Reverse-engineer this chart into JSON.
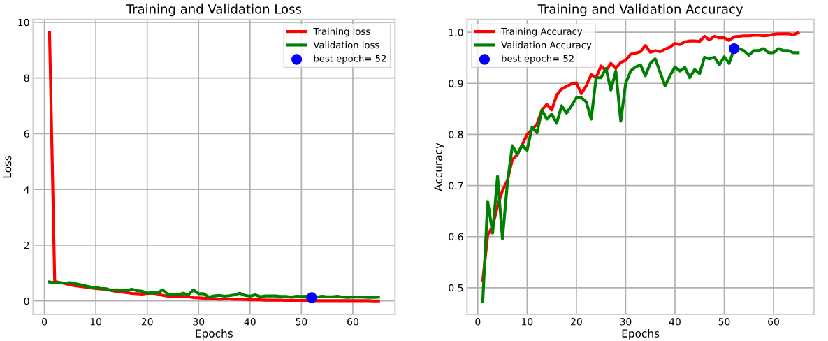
{
  "chart_data": [
    {
      "type": "line",
      "title": "Training and Validation Loss",
      "xlabel": "Epochs",
      "ylabel": "Loss",
      "x": [
        1,
        2,
        3,
        4,
        5,
        6,
        7,
        8,
        9,
        10,
        11,
        12,
        13,
        14,
        15,
        16,
        17,
        18,
        19,
        20,
        21,
        22,
        23,
        24,
        25,
        26,
        27,
        28,
        29,
        30,
        31,
        32,
        33,
        34,
        35,
        36,
        37,
        38,
        39,
        40,
        41,
        42,
        43,
        44,
        45,
        46,
        47,
        48,
        49,
        50,
        51,
        52,
        53,
        54,
        55,
        56,
        57,
        58,
        59,
        60,
        61,
        62,
        63,
        64,
        65
      ],
      "series": [
        {
          "name": "Training loss",
          "color": "#ff0000",
          "values": [
            9.62,
            0.7,
            0.66,
            0.63,
            0.58,
            0.55,
            0.52,
            0.5,
            0.47,
            0.45,
            0.43,
            0.42,
            0.38,
            0.34,
            0.32,
            0.3,
            0.27,
            0.26,
            0.25,
            0.27,
            0.28,
            0.25,
            0.2,
            0.17,
            0.18,
            0.16,
            0.17,
            0.15,
            0.12,
            0.11,
            0.1,
            0.08,
            0.08,
            0.06,
            0.07,
            0.07,
            0.06,
            0.06,
            0.05,
            0.04,
            0.04,
            0.04,
            0.03,
            0.03,
            0.03,
            0.03,
            0.02,
            0.03,
            0.02,
            0.02,
            0.03,
            0.01,
            0.01,
            0.01,
            0.01,
            0.01,
            0.01,
            0.01,
            0.01,
            0.01,
            0.01,
            0.01,
            0.01,
            0.0,
            0.0
          ]
        },
        {
          "name": "Validation loss",
          "color": "#008000",
          "values": [
            0.68,
            0.66,
            0.66,
            0.64,
            0.66,
            0.62,
            0.58,
            0.54,
            0.5,
            0.48,
            0.45,
            0.44,
            0.38,
            0.4,
            0.38,
            0.38,
            0.42,
            0.37,
            0.35,
            0.28,
            0.3,
            0.29,
            0.4,
            0.24,
            0.24,
            0.22,
            0.28,
            0.22,
            0.4,
            0.26,
            0.26,
            0.14,
            0.18,
            0.2,
            0.17,
            0.19,
            0.22,
            0.28,
            0.2,
            0.17,
            0.22,
            0.15,
            0.18,
            0.18,
            0.18,
            0.16,
            0.16,
            0.14,
            0.17,
            0.16,
            0.17,
            0.12,
            0.14,
            0.17,
            0.15,
            0.15,
            0.17,
            0.14,
            0.13,
            0.14,
            0.14,
            0.14,
            0.13,
            0.13,
            0.14
          ]
        },
        {
          "name": "best epoch= 52",
          "type": "scatter",
          "color": "#0000ff",
          "x": [
            52
          ],
          "values": [
            0.12
          ]
        }
      ],
      "xlim": [
        -2.2,
        68.2
      ],
      "ylim": [
        -0.48,
        10.1
      ],
      "xticks": [
        0,
        10,
        20,
        30,
        40,
        50,
        60
      ],
      "yticks": [
        0,
        2,
        4,
        6,
        8,
        10
      ],
      "grid": true,
      "legend": "top right"
    },
    {
      "type": "line",
      "title": "Training and Validation Accuracy",
      "xlabel": "Epochs",
      "ylabel": "Accuracy",
      "x": [
        1,
        2,
        3,
        4,
        5,
        6,
        7,
        8,
        9,
        10,
        11,
        12,
        13,
        14,
        15,
        16,
        17,
        18,
        19,
        20,
        21,
        22,
        23,
        24,
        25,
        26,
        27,
        28,
        29,
        30,
        31,
        32,
        33,
        34,
        35,
        36,
        37,
        38,
        39,
        40,
        41,
        42,
        43,
        44,
        45,
        46,
        47,
        48,
        49,
        50,
        51,
        52,
        53,
        54,
        55,
        56,
        57,
        58,
        59,
        60,
        61,
        62,
        63,
        64,
        65
      ],
      "series": [
        {
          "name": "Training Accuracy",
          "color": "#ff0000",
          "values": [
            0.514,
            0.603,
            0.62,
            0.66,
            0.69,
            0.71,
            0.751,
            0.76,
            0.78,
            0.8,
            0.81,
            0.82,
            0.848,
            0.859,
            0.848,
            0.877,
            0.889,
            0.894,
            0.899,
            0.901,
            0.88,
            0.895,
            0.917,
            0.911,
            0.934,
            0.925,
            0.939,
            0.929,
            0.941,
            0.945,
            0.957,
            0.959,
            0.962,
            0.974,
            0.961,
            0.964,
            0.962,
            0.967,
            0.971,
            0.978,
            0.976,
            0.981,
            0.983,
            0.983,
            0.982,
            0.992,
            0.985,
            0.992,
            0.989,
            0.989,
            0.984,
            0.991,
            0.992,
            0.993,
            0.993,
            0.994,
            0.994,
            0.993,
            0.994,
            0.996,
            0.997,
            0.997,
            0.997,
            0.995,
            0.999
          ]
        },
        {
          "name": "Validation Accuracy",
          "color": "#008000",
          "values": [
            0.474,
            0.669,
            0.607,
            0.718,
            0.596,
            0.705,
            0.778,
            0.761,
            0.779,
            0.769,
            0.814,
            0.803,
            0.848,
            0.83,
            0.84,
            0.822,
            0.856,
            0.842,
            0.856,
            0.872,
            0.872,
            0.864,
            0.83,
            0.911,
            0.911,
            0.929,
            0.887,
            0.924,
            0.826,
            0.9,
            0.924,
            0.932,
            0.936,
            0.915,
            0.939,
            0.948,
            0.921,
            0.895,
            0.915,
            0.932,
            0.924,
            0.931,
            0.911,
            0.927,
            0.919,
            0.951,
            0.948,
            0.951,
            0.936,
            0.952,
            0.939,
            0.968,
            0.968,
            0.964,
            0.955,
            0.964,
            0.964,
            0.968,
            0.96,
            0.96,
            0.968,
            0.964,
            0.964,
            0.96,
            0.96
          ]
        },
        {
          "name": "best epoch= 52",
          "type": "scatter",
          "color": "#0000ff",
          "x": [
            52
          ],
          "values": [
            0.968
          ]
        }
      ],
      "xlim": [
        -2.2,
        68.2
      ],
      "ylim": [
        0.448,
        1.025
      ],
      "xticks": [
        0,
        10,
        20,
        30,
        40,
        50,
        60
      ],
      "yticks": [
        0.5,
        0.6,
        0.7,
        0.8,
        0.9,
        {
          "value": 1,
          "label": "1.0"
        }
      ],
      "grid": true,
      "legend": "top left"
    }
  ]
}
